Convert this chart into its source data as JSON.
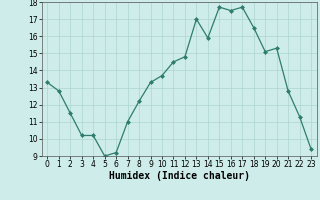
{
  "x": [
    0,
    1,
    2,
    3,
    4,
    5,
    6,
    7,
    8,
    9,
    10,
    11,
    12,
    13,
    14,
    15,
    16,
    17,
    18,
    19,
    20,
    21,
    22,
    23
  ],
  "y": [
    13.3,
    12.8,
    11.5,
    10.2,
    10.2,
    9.0,
    9.2,
    11.0,
    12.2,
    13.3,
    13.7,
    14.5,
    14.8,
    17.0,
    15.9,
    17.7,
    17.5,
    17.7,
    16.5,
    15.1,
    15.3,
    12.8,
    11.3,
    9.4
  ],
  "xlabel": "Humidex (Indice chaleur)",
  "xlim": [
    -0.5,
    23.5
  ],
  "ylim": [
    9,
    18
  ],
  "yticks": [
    9,
    10,
    11,
    12,
    13,
    14,
    15,
    16,
    17,
    18
  ],
  "xticks": [
    0,
    1,
    2,
    3,
    4,
    5,
    6,
    7,
    8,
    9,
    10,
    11,
    12,
    13,
    14,
    15,
    16,
    17,
    18,
    19,
    20,
    21,
    22,
    23
  ],
  "line_color": "#2e7d6e",
  "marker": "D",
  "marker_size": 2.0,
  "bg_color": "#ceecea",
  "grid_color": "#aed4d0",
  "axis_bg": "#ceecea",
  "tick_fontsize": 5.5,
  "xlabel_fontsize": 7.0,
  "linewidth": 0.9
}
